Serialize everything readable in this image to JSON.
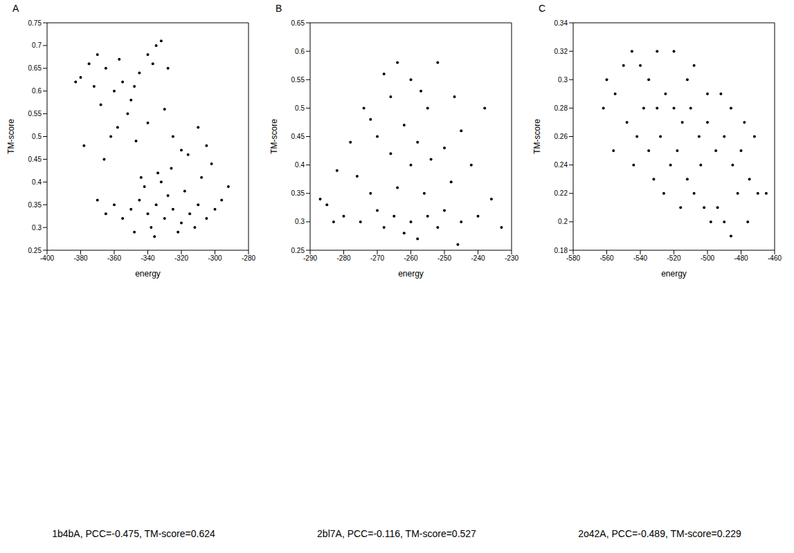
{
  "chart_data": [
    {
      "type": "scatter",
      "panel": "A",
      "caption": "1b4bA, PCC=-0.475, TM-score=0.624",
      "x_label": "energy",
      "y_label": "TM-score",
      "color": "#000000",
      "marker": "circle",
      "xlim": [
        -400,
        -280
      ],
      "xticks": [
        -400,
        -380,
        -360,
        -340,
        -320,
        -300,
        -280
      ],
      "ylim": [
        0.25,
        0.75
      ],
      "yticks": [
        0.25,
        0.3,
        0.35,
        0.4,
        0.45,
        0.5,
        0.55,
        0.6,
        0.65,
        0.7,
        0.75
      ],
      "points": [
        [
          -340,
          0.33
        ],
        [
          -335,
          0.35
        ],
        [
          -330,
          0.32
        ],
        [
          -345,
          0.36
        ],
        [
          -325,
          0.34
        ],
        [
          -320,
          0.31
        ],
        [
          -338,
          0.3
        ],
        [
          -350,
          0.34
        ],
        [
          -315,
          0.33
        ],
        [
          -310,
          0.35
        ],
        [
          -305,
          0.32
        ],
        [
          -300,
          0.34
        ],
        [
          -355,
          0.32
        ],
        [
          -360,
          0.35
        ],
        [
          -342,
          0.39
        ],
        [
          -332,
          0.4
        ],
        [
          -328,
          0.37
        ],
        [
          -318,
          0.38
        ],
        [
          -348,
          0.29
        ],
        [
          -336,
          0.28
        ],
        [
          -322,
          0.29
        ],
        [
          -312,
          0.3
        ],
        [
          -296,
          0.36
        ],
        [
          -292,
          0.39
        ],
        [
          -365,
          0.33
        ],
        [
          -370,
          0.36
        ],
        [
          -334,
          0.42
        ],
        [
          -326,
          0.43
        ],
        [
          -344,
          0.41
        ],
        [
          -308,
          0.41
        ],
        [
          -302,
          0.44
        ],
        [
          -316,
          0.46
        ],
        [
          -380,
          0.63
        ],
        [
          -383,
          0.62
        ],
        [
          -375,
          0.66
        ],
        [
          -370,
          0.68
        ],
        [
          -365,
          0.65
        ],
        [
          -360,
          0.6
        ],
        [
          -355,
          0.62
        ],
        [
          -350,
          0.58
        ],
        [
          -345,
          0.64
        ],
        [
          -340,
          0.68
        ],
        [
          -335,
          0.7
        ],
        [
          -332,
          0.71
        ],
        [
          -337,
          0.66
        ],
        [
          -352,
          0.55
        ],
        [
          -358,
          0.52
        ],
        [
          -362,
          0.5
        ],
        [
          -368,
          0.57
        ],
        [
          -372,
          0.61
        ],
        [
          -347,
          0.49
        ],
        [
          -340,
          0.53
        ],
        [
          -330,
          0.56
        ],
        [
          -325,
          0.5
        ],
        [
          -320,
          0.47
        ],
        [
          -310,
          0.52
        ],
        [
          -305,
          0.48
        ],
        [
          -366,
          0.45
        ],
        [
          -378,
          0.48
        ],
        [
          -357,
          0.67
        ],
        [
          -348,
          0.61
        ],
        [
          -328,
          0.65
        ]
      ]
    },
    {
      "type": "scatter",
      "panel": "B",
      "caption": "2bl7A, PCC=-0.116, TM-score=0.527",
      "x_label": "energy",
      "y_label": "TM-score",
      "color": "#000000",
      "marker": "circle",
      "xlim": [
        -290,
        -230
      ],
      "xticks": [
        -290,
        -280,
        -270,
        -260,
        -250,
        -240,
        -230
      ],
      "ylim": [
        0.25,
        0.65
      ],
      "yticks": [
        0.25,
        0.3,
        0.35,
        0.4,
        0.45,
        0.5,
        0.55,
        0.6,
        0.65
      ],
      "points": [
        [
          -265,
          0.31
        ],
        [
          -260,
          0.3
        ],
        [
          -270,
          0.32
        ],
        [
          -255,
          0.31
        ],
        [
          -275,
          0.3
        ],
        [
          -250,
          0.32
        ],
        [
          -245,
          0.3
        ],
        [
          -280,
          0.31
        ],
        [
          -285,
          0.33
        ],
        [
          -262,
          0.28
        ],
        [
          -268,
          0.29
        ],
        [
          -258,
          0.27
        ],
        [
          -252,
          0.29
        ],
        [
          -240,
          0.31
        ],
        [
          -236,
          0.34
        ],
        [
          -287,
          0.34
        ],
        [
          -272,
          0.35
        ],
        [
          -264,
          0.36
        ],
        [
          -256,
          0.35
        ],
        [
          -248,
          0.37
        ],
        [
          -276,
          0.38
        ],
        [
          -260,
          0.4
        ],
        [
          -266,
          0.42
        ],
        [
          -254,
          0.41
        ],
        [
          -270,
          0.45
        ],
        [
          -262,
          0.47
        ],
        [
          -258,
          0.44
        ],
        [
          -250,
          0.43
        ],
        [
          -274,
          0.5
        ],
        [
          -266,
          0.52
        ],
        [
          -260,
          0.55
        ],
        [
          -255,
          0.5
        ],
        [
          -252,
          0.58
        ],
        [
          -264,
          0.58
        ],
        [
          -245,
          0.46
        ],
        [
          -242,
          0.4
        ],
        [
          -278,
          0.44
        ],
        [
          -282,
          0.39
        ],
        [
          -268,
          0.56
        ],
        [
          -257,
          0.53
        ],
        [
          -247,
          0.52
        ],
        [
          -272,
          0.48
        ],
        [
          -238,
          0.5
        ],
        [
          -283,
          0.3
        ],
        [
          -233,
          0.29
        ],
        [
          -246,
          0.26
        ]
      ]
    },
    {
      "type": "scatter",
      "panel": "C",
      "caption": "2o42A, PCC=-0.489, TM-score=0.229",
      "x_label": "energy",
      "y_label": "TM-score",
      "color": "#000000",
      "marker": "circle",
      "xlim": [
        -580,
        -460
      ],
      "xticks": [
        -580,
        -560,
        -540,
        -520,
        -500,
        -480,
        -460
      ],
      "ylim": [
        0.18,
        0.34
      ],
      "yticks": [
        0.18,
        0.2,
        0.22,
        0.24,
        0.26,
        0.28,
        0.3,
        0.32,
        0.34
      ],
      "points": [
        [
          -560,
          0.3
        ],
        [
          -555,
          0.29
        ],
        [
          -550,
          0.31
        ],
        [
          -545,
          0.32
        ],
        [
          -540,
          0.31
        ],
        [
          -535,
          0.3
        ],
        [
          -530,
          0.28
        ],
        [
          -525,
          0.29
        ],
        [
          -520,
          0.28
        ],
        [
          -515,
          0.27
        ],
        [
          -510,
          0.28
        ],
        [
          -505,
          0.26
        ],
        [
          -500,
          0.27
        ],
        [
          -495,
          0.25
        ],
        [
          -490,
          0.26
        ],
        [
          -485,
          0.24
        ],
        [
          -480,
          0.25
        ],
        [
          -475,
          0.23
        ],
        [
          -470,
          0.22
        ],
        [
          -465,
          0.22
        ],
        [
          -548,
          0.27
        ],
        [
          -542,
          0.26
        ],
        [
          -535,
          0.25
        ],
        [
          -528,
          0.26
        ],
        [
          -522,
          0.24
        ],
        [
          -518,
          0.25
        ],
        [
          -512,
          0.23
        ],
        [
          -508,
          0.22
        ],
        [
          -502,
          0.21
        ],
        [
          -498,
          0.2
        ],
        [
          -494,
          0.21
        ],
        [
          -490,
          0.2
        ],
        [
          -486,
          0.19
        ],
        [
          -532,
          0.23
        ],
        [
          -526,
          0.22
        ],
        [
          -516,
          0.21
        ],
        [
          -538,
          0.28
        ],
        [
          -512,
          0.3
        ],
        [
          -508,
          0.31
        ],
        [
          -520,
          0.32
        ],
        [
          -530,
          0.32
        ],
        [
          -500,
          0.29
        ],
        [
          -492,
          0.29
        ],
        [
          -486,
          0.28
        ],
        [
          -478,
          0.27
        ],
        [
          -472,
          0.26
        ],
        [
          -544,
          0.24
        ],
        [
          -556,
          0.25
        ],
        [
          -562,
          0.28
        ],
        [
          -504,
          0.24
        ],
        [
          -482,
          0.22
        ],
        [
          -476,
          0.2
        ]
      ]
    }
  ]
}
